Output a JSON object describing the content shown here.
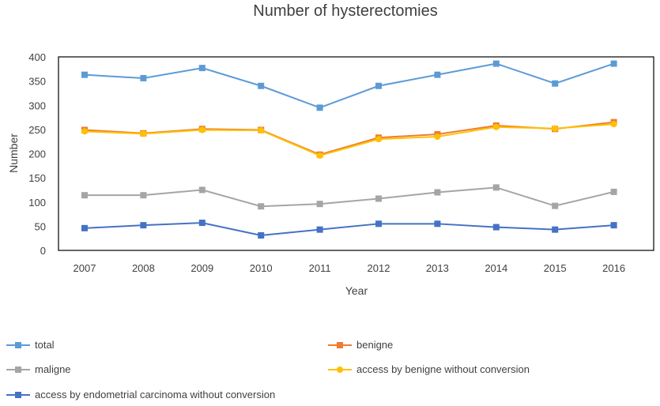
{
  "chart_data": {
    "type": "line",
    "title": "Number of hysterectomies",
    "xlabel": "Year",
    "ylabel": "Number",
    "ylim": [
      0,
      400
    ],
    "yticks": [
      0,
      50,
      100,
      150,
      200,
      250,
      300,
      350,
      400
    ],
    "categories": [
      "2007",
      "2008",
      "2009",
      "2010",
      "2011",
      "2012",
      "2013",
      "2014",
      "2015",
      "2016"
    ],
    "grid": false,
    "legend_position": "bottom",
    "series": [
      {
        "name": "total",
        "color": "#5B9BD5",
        "marker": "square",
        "values": [
          363,
          356,
          377,
          340,
          295,
          340,
          363,
          386,
          345,
          386
        ]
      },
      {
        "name": "benigne",
        "color": "#ED7D31",
        "marker": "square",
        "values": [
          249,
          242,
          251,
          249,
          198,
          233,
          240,
          258,
          251,
          265
        ]
      },
      {
        "name": "maligne",
        "color": "#A5A5A5",
        "marker": "square",
        "values": [
          114,
          114,
          125,
          91,
          96,
          107,
          120,
          130,
          92,
          121
        ]
      },
      {
        "name": "access by benigne without conversion",
        "color": "#FFC000",
        "marker": "circle",
        "values": [
          246,
          241,
          249,
          248,
          196,
          230,
          235,
          255,
          252,
          261
        ]
      },
      {
        "name": "access by endometrial carcinoma without conversion",
        "color": "#4472C4",
        "marker": "square",
        "values": [
          46,
          52,
          57,
          31,
          43,
          55,
          55,
          48,
          43,
          52
        ]
      }
    ]
  }
}
